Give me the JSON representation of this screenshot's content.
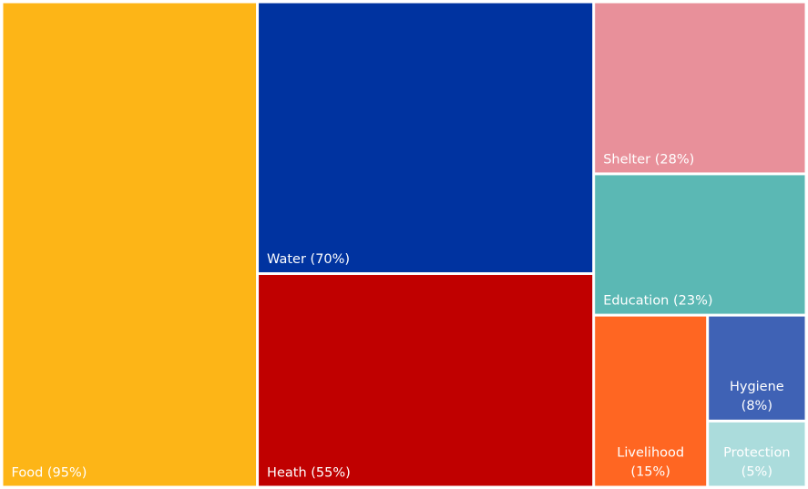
{
  "chart_data": {
    "type": "treemap",
    "categories": [
      "Food",
      "Water",
      "Heath",
      "Shelter",
      "Education",
      "Livelihood",
      "Hygiene",
      "Protection"
    ],
    "values": [
      95,
      70,
      55,
      28,
      23,
      15,
      8,
      5
    ],
    "value_labels": [
      "(95%)",
      "(70%)",
      "(55%)",
      "(28%)",
      "(23%)",
      "(15%)",
      "(8%)",
      "(5%)"
    ],
    "colors": [
      "#fdb517",
      "#0033a0",
      "#c00000",
      "#e8909a",
      "#5bb8b4",
      "#ff6622",
      "#3f62b5",
      "#abdcdc"
    ]
  }
}
